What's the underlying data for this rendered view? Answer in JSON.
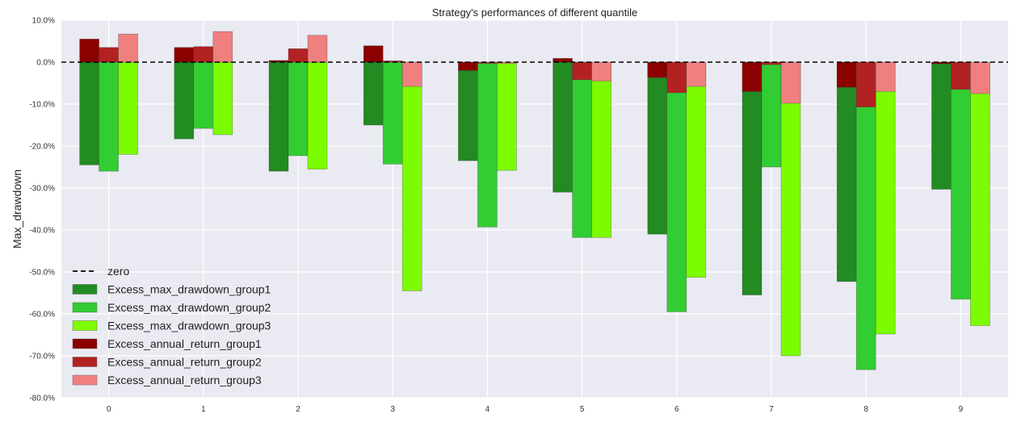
{
  "chart_data": {
    "type": "bar",
    "title": "Strategy's performances of different quantile",
    "xlabel": "",
    "ylabel": "Max_drawdown",
    "categories": [
      "0",
      "1",
      "2",
      "3",
      "4",
      "5",
      "6",
      "7",
      "8",
      "9"
    ],
    "ylim": [
      -80,
      10
    ],
    "yticks": [
      "10.0%",
      "0.0%",
      "-10.0%",
      "-20.0%",
      "-30.0%",
      "-40.0%",
      "-50.0%",
      "-60.0%",
      "-70.0%",
      "-80.0%"
    ],
    "ytick_values": [
      10,
      0,
      -10,
      -20,
      -30,
      -40,
      -50,
      -60,
      -70,
      -80
    ],
    "grid": true,
    "legend_position": "bottom-left",
    "reference_line": {
      "name": "zero",
      "y": 0,
      "style": "dashed",
      "color": "#000000"
    },
    "drawdown_series": [
      {
        "name": "Excess_max_drawdown_group1",
        "color": "#228b22",
        "values": [
          -24.5,
          -18.3,
          -26.0,
          -15.0,
          -23.5,
          -31.0,
          -41.0,
          -55.5,
          -52.3,
          -30.3
        ]
      },
      {
        "name": "Excess_max_drawdown_group2",
        "color": "#32cd32",
        "values": [
          -26.0,
          -15.8,
          -22.3,
          -24.3,
          -39.3,
          -41.8,
          -59.5,
          -25.0,
          -73.3,
          -56.5
        ]
      },
      {
        "name": "Excess_max_drawdown_group3",
        "color": "#7cfc00",
        "values": [
          -22.0,
          -17.3,
          -25.5,
          -54.5,
          -25.8,
          -41.8,
          -51.3,
          -70.0,
          -64.8,
          -62.8
        ]
      }
    ],
    "return_series": [
      {
        "name": "Excess_annual_return_group1",
        "color": "#8b0000",
        "values": [
          5.5,
          3.5,
          0.4,
          3.9,
          -2.0,
          0.9,
          -3.7,
          -7.0,
          -6.0,
          -0.4
        ]
      },
      {
        "name": "Excess_annual_return_group2",
        "color": "#b22222",
        "values": [
          3.5,
          3.7,
          3.2,
          0.3,
          -0.3,
          -4.2,
          -7.3,
          -0.6,
          -10.7,
          -6.5
        ]
      },
      {
        "name": "Excess_annual_return_group3",
        "color": "#f08080",
        "values": [
          6.7,
          7.3,
          6.4,
          -5.8,
          -0.3,
          -4.5,
          -5.8,
          -9.8,
          -7.0,
          -7.5
        ]
      }
    ],
    "legend": [
      "zero",
      "Excess_max_drawdown_group1",
      "Excess_max_drawdown_group2",
      "Excess_max_drawdown_group3",
      "Excess_annual_return_group1",
      "Excess_annual_return_group2",
      "Excess_annual_return_group3"
    ]
  },
  "colors": {
    "plot_background": "#eaeaf2",
    "grid": "#ffffff"
  }
}
